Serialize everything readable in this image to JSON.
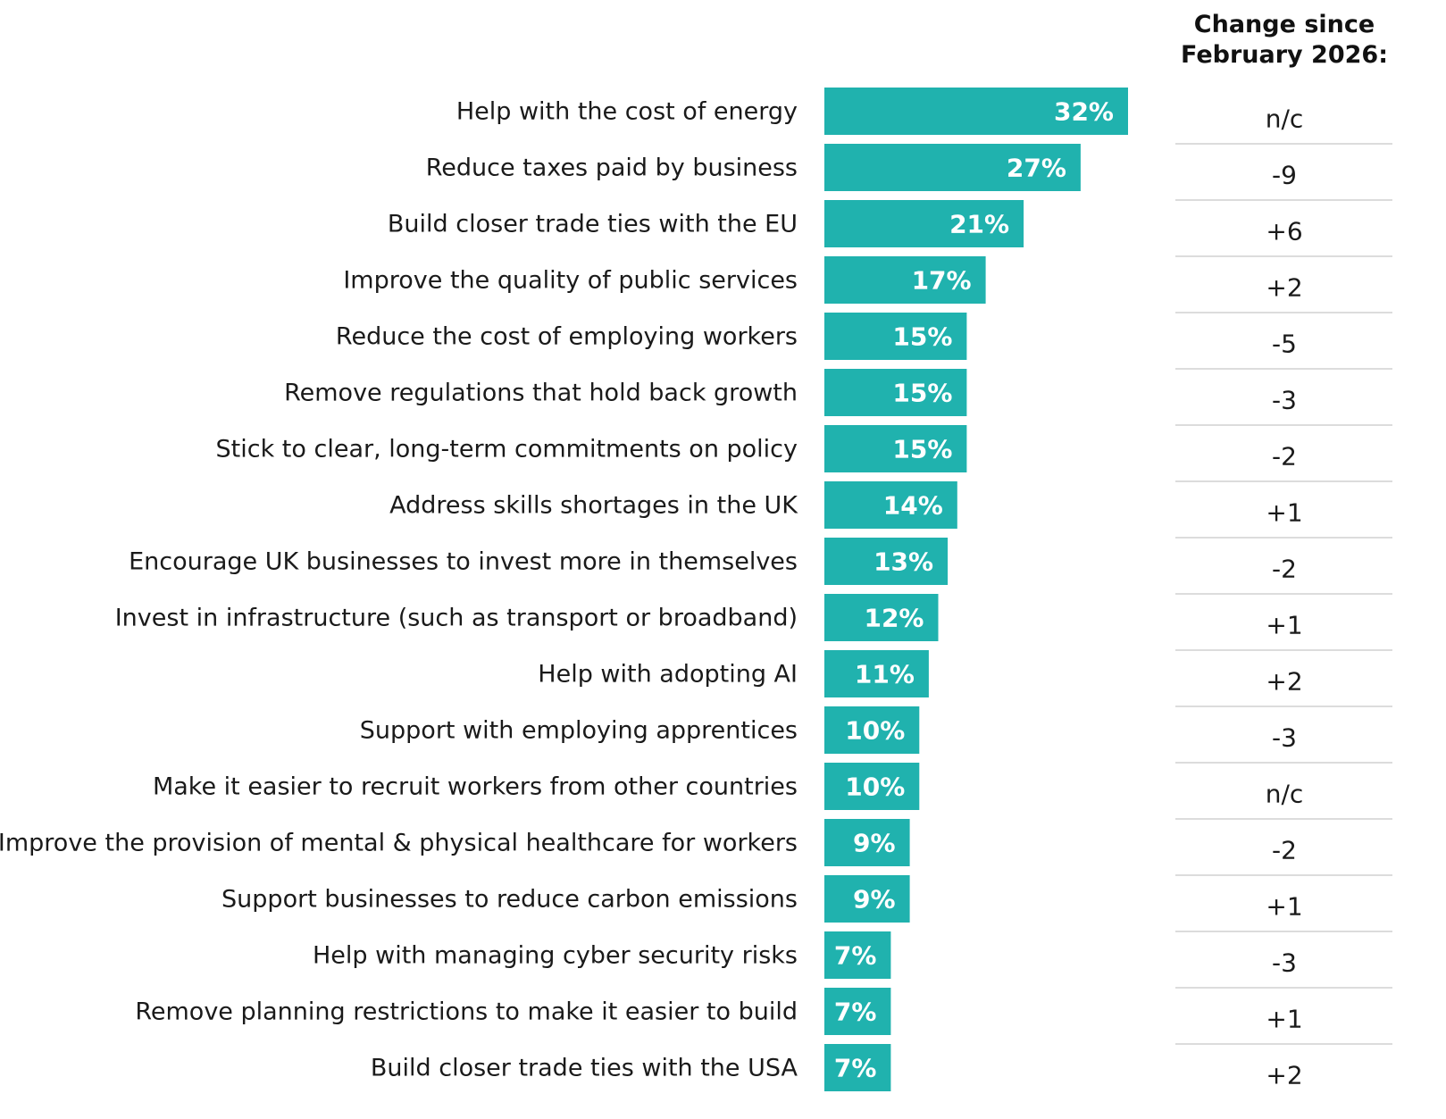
{
  "chart_data": {
    "type": "bar",
    "orientation": "horizontal",
    "categories": [
      "Help with the cost of energy",
      "Reduce taxes paid by business",
      "Build closer trade ties with the EU",
      "Improve the quality of public services",
      "Reduce the cost of employing workers",
      "Remove regulations that hold back growth",
      "Stick to clear, long-term commitments on policy",
      "Address skills shortages in the UK",
      "Encourage UK businesses to invest more in themselves",
      "Invest in infrastructure (such as transport or broadband)",
      "Help with adopting AI",
      "Support with employing apprentices",
      "Make it easier to recruit workers from other countries",
      "Improve the provision of mental & physical healthcare for workers",
      "Support businesses to reduce carbon emissions",
      "Help with managing cyber security risks",
      "Remove planning restrictions to make it easier to build",
      "Build closer trade ties with the USA"
    ],
    "values": [
      32,
      27,
      21,
      17,
      15,
      15,
      15,
      14,
      13,
      12,
      11,
      10,
      10,
      9,
      9,
      7,
      7,
      7
    ],
    "value_labels": [
      "32%",
      "27%",
      "21%",
      "17%",
      "15%",
      "15%",
      "15%",
      "14%",
      "13%",
      "12%",
      "11%",
      "10%",
      "10%",
      "9%",
      "9%",
      "7%",
      "7%",
      "7%"
    ],
    "change_header": [
      "Change since",
      "February 2026:"
    ],
    "changes": [
      "n/c",
      "-9",
      "+6",
      "+2",
      "-5",
      "-3",
      "-2",
      "+1",
      "-2",
      "+1",
      "+2",
      "-3",
      "n/c",
      "-2",
      "+1",
      "-3",
      "+1",
      "+2"
    ],
    "xlim": [
      0,
      32
    ],
    "grid": false,
    "colors": {
      "bar": "#20B2AE",
      "divider": "#dcdcdc"
    }
  }
}
